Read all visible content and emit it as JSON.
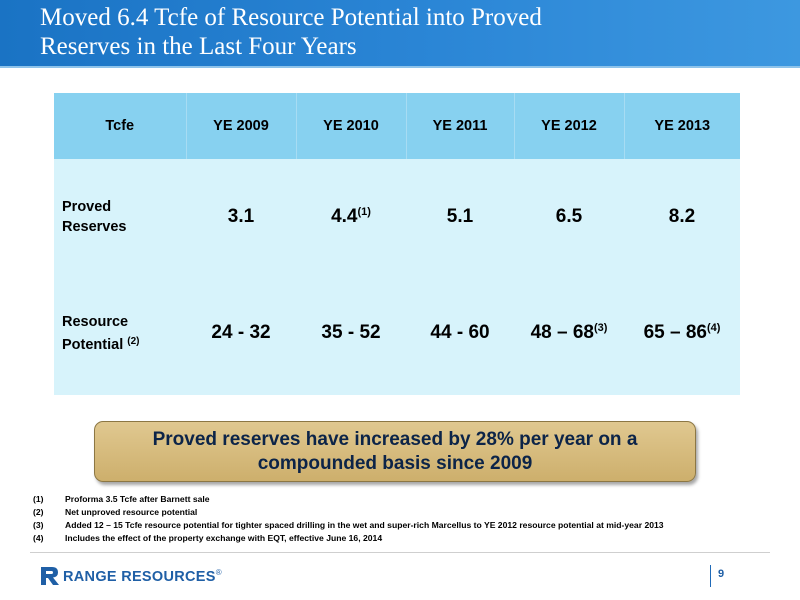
{
  "header": {
    "title_line1": "Moved 6.4 Tcfe of Resource Potential into Proved",
    "title_line2": "Reserves in the Last Four Years"
  },
  "table": {
    "columns": [
      "Tcfe",
      "YE 2009",
      "YE 2010",
      "YE 2011",
      "YE 2012",
      "YE 2013"
    ],
    "rows": [
      {
        "label_line1": "Proved",
        "label_line2": "Reserves",
        "label_sup": "",
        "cells": [
          {
            "value": "3.1",
            "sup": ""
          },
          {
            "value": "4.4",
            "sup": "(1)"
          },
          {
            "value": "5.1",
            "sup": ""
          },
          {
            "value": "6.5",
            "sup": ""
          },
          {
            "value": "8.2",
            "sup": ""
          }
        ]
      },
      {
        "label_line1": "Resource",
        "label_line2": "Potential",
        "label_sup": "(2)",
        "cells": [
          {
            "value": "24 - 32",
            "sup": ""
          },
          {
            "value": "35 - 52",
            "sup": ""
          },
          {
            "value": "44 - 60",
            "sup": ""
          },
          {
            "value": "48 – 68",
            "sup": "(3)"
          },
          {
            "value": "65 – 86",
            "sup": "(4)"
          }
        ]
      }
    ]
  },
  "callout": {
    "line1": "Proved reserves have increased by 28% per year on a",
    "line2": "compounded basis since 2009"
  },
  "footnotes": [
    {
      "num": "(1)",
      "text": "Proforma 3.5 Tcfe after Barnett sale"
    },
    {
      "num": "(2)",
      "text": "Net unproved resource potential"
    },
    {
      "num": "(3)",
      "text": "Added 12 – 15 Tcfe resource potential for tighter spaced drilling in the wet and super-rich Marcellus to YE 2012 resource potential at mid-year 2013"
    },
    {
      "num": "(4)",
      "text": "Includes the effect of the property exchange with EQT, effective June 16, 2014"
    }
  ],
  "footer": {
    "logo_text": "RANGE RESOURCES",
    "logo_reg": "®",
    "page_number": "9"
  },
  "colors": {
    "header_blue": "#2b86d6",
    "table_header": "#87d1f0",
    "table_body": "#d7f3fb",
    "callout_fill": "#d4b877",
    "callout_text": "#0c2448",
    "logo_blue": "#1f5fa6"
  }
}
